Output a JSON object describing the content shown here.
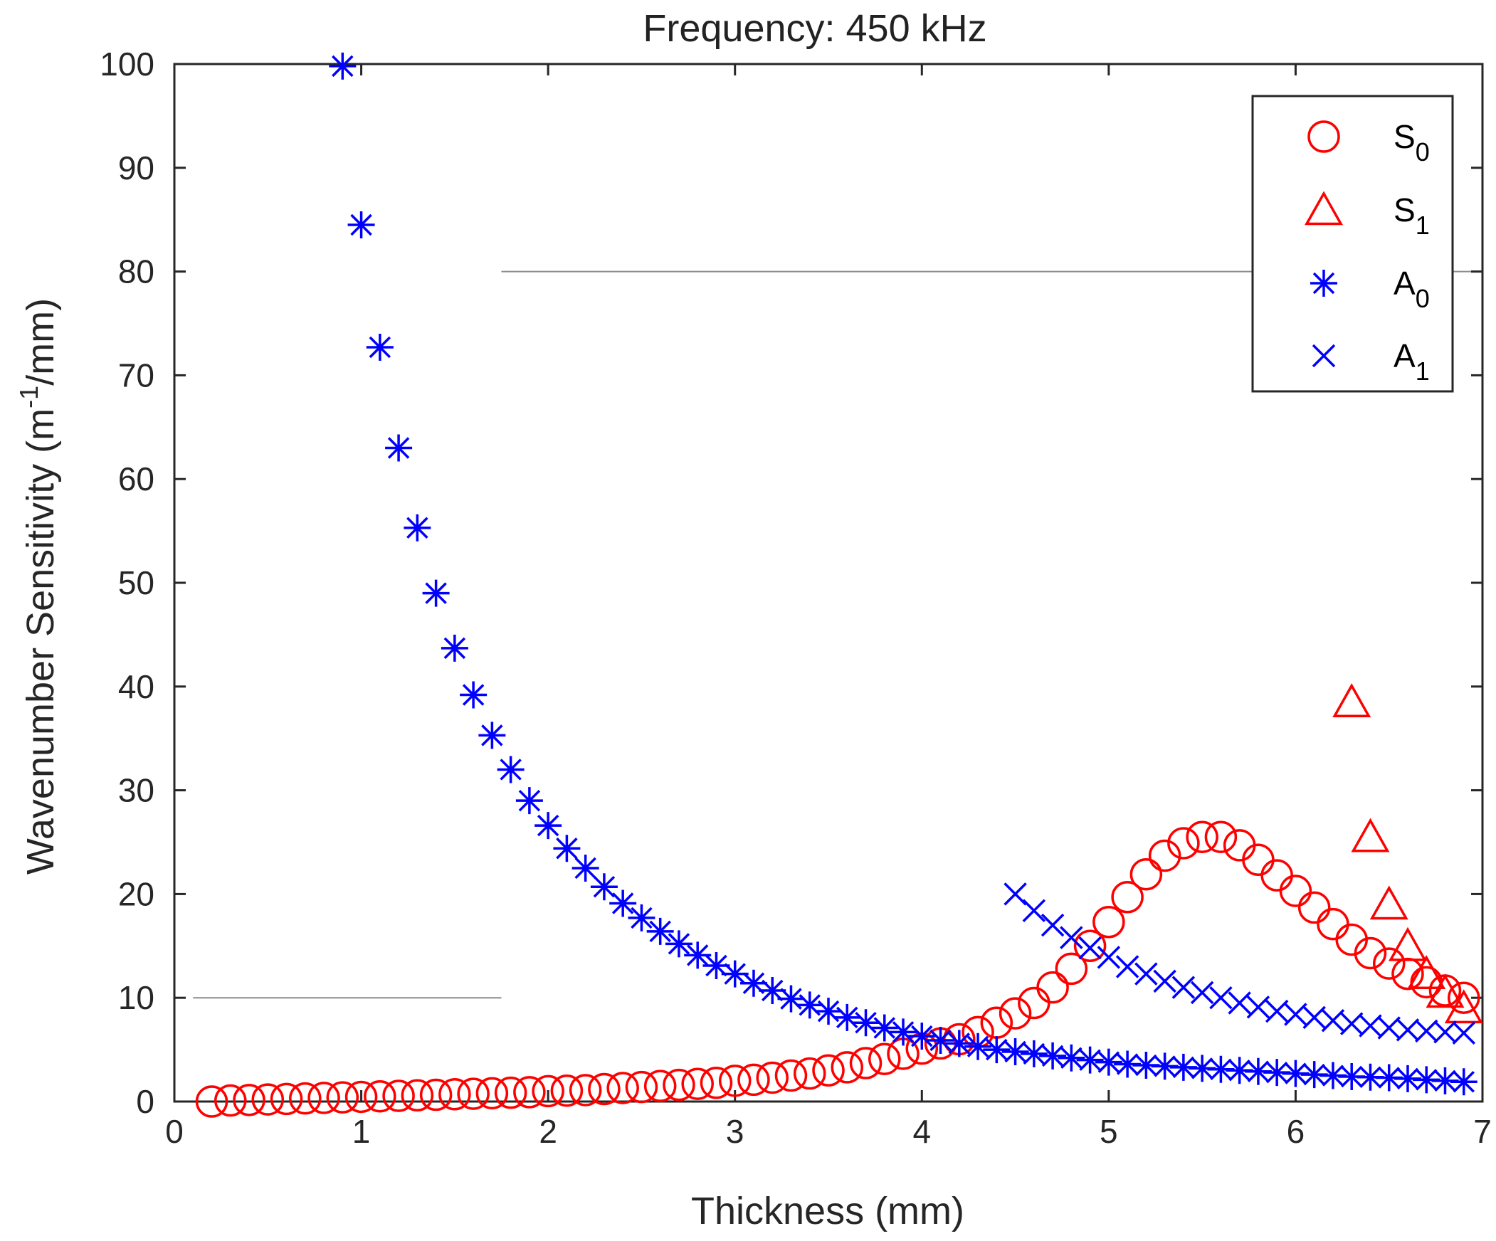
{
  "chart_data": {
    "type": "scatter",
    "title": "Frequency: 450 kHz",
    "xlabel": "Thickness (mm)",
    "ylabel": {
      "base": "Wavenumber Sensitivity (m",
      "sup": "-1",
      "tail": "/mm)"
    },
    "xlim": [
      0,
      7
    ],
    "ylim": [
      0,
      100
    ],
    "xticks": [
      0,
      1,
      2,
      3,
      4,
      5,
      6,
      7
    ],
    "yticks": [
      0,
      10,
      20,
      30,
      40,
      50,
      60,
      70,
      80,
      90,
      100
    ],
    "legend_position": "top-right",
    "colors": {
      "red": "#ff0000",
      "blue": "#0000ff",
      "axis": "#262626",
      "ref_line": "#8c8c8c"
    },
    "reference_lines": [
      {
        "y": 80,
        "x_range": [
          1.75,
          7
        ]
      },
      {
        "y": 10,
        "x_range": [
          0.1,
          1.75
        ]
      }
    ],
    "series": [
      {
        "name": "S",
        "sub": "0",
        "marker": "circle",
        "color": "#ff0000",
        "x": [
          0.2,
          0.3,
          0.4,
          0.5,
          0.6,
          0.7,
          0.8,
          0.9,
          1.0,
          1.1,
          1.2,
          1.3,
          1.4,
          1.5,
          1.6,
          1.7,
          1.8,
          1.9,
          2.0,
          2.1,
          2.2,
          2.3,
          2.4,
          2.5,
          2.6,
          2.7,
          2.8,
          2.9,
          3.0,
          3.1,
          3.2,
          3.3,
          3.4,
          3.5,
          3.6,
          3.7,
          3.8,
          3.9,
          4.0,
          4.1,
          4.2,
          4.3,
          4.4,
          4.5,
          4.6,
          4.7,
          4.8,
          4.9,
          5.0,
          5.1,
          5.2,
          5.3,
          5.4,
          5.5,
          5.6,
          5.7,
          5.8,
          5.9,
          6.0,
          6.1,
          6.2,
          6.3,
          6.4,
          6.5,
          6.6,
          6.7,
          6.8,
          6.9
        ],
        "y": [
          0.0,
          0.1,
          0.15,
          0.2,
          0.25,
          0.3,
          0.35,
          0.4,
          0.45,
          0.5,
          0.55,
          0.6,
          0.65,
          0.7,
          0.75,
          0.8,
          0.85,
          0.9,
          1.0,
          1.05,
          1.1,
          1.2,
          1.3,
          1.4,
          1.5,
          1.6,
          1.7,
          1.8,
          2.0,
          2.1,
          2.3,
          2.5,
          2.7,
          3.0,
          3.3,
          3.7,
          4.1,
          4.6,
          5.1,
          5.6,
          6.0,
          6.7,
          7.6,
          8.5,
          9.5,
          11.0,
          12.8,
          15.0,
          17.3,
          19.7,
          21.9,
          23.7,
          24.9,
          25.5,
          25.5,
          24.7,
          23.3,
          21.8,
          20.3,
          18.7,
          17.1,
          15.6,
          14.3,
          13.3,
          12.3,
          11.5,
          10.7,
          10.0
        ]
      },
      {
        "name": "S",
        "sub": "1",
        "marker": "triangle",
        "color": "#ff0000",
        "x": [
          6.3,
          6.4,
          6.5,
          6.6,
          6.7,
          6.8,
          6.9
        ],
        "y": [
          38.5,
          25.5,
          19.0,
          15.0,
          12.3,
          10.5,
          9.0
        ]
      },
      {
        "name": "A",
        "sub": "0",
        "marker": "asterisk",
        "color": "#0000ff",
        "x": [
          0.9,
          1.0,
          1.1,
          1.2,
          1.3,
          1.4,
          1.5,
          1.6,
          1.7,
          1.8,
          1.9,
          2.0,
          2.1,
          2.2,
          2.3,
          2.4,
          2.5,
          2.6,
          2.7,
          2.8,
          2.9,
          3.0,
          3.1,
          3.2,
          3.3,
          3.4,
          3.5,
          3.6,
          3.7,
          3.8,
          3.9,
          4.0,
          4.1,
          4.2,
          4.3,
          4.4,
          4.5,
          4.6,
          4.7,
          4.8,
          4.9,
          5.0,
          5.1,
          5.2,
          5.3,
          5.4,
          5.5,
          5.6,
          5.7,
          5.8,
          5.9,
          6.0,
          6.1,
          6.2,
          6.3,
          6.4,
          6.5,
          6.6,
          6.7,
          6.8,
          6.9
        ],
        "y": [
          99.8,
          84.5,
          72.7,
          63.0,
          55.3,
          49.0,
          43.7,
          39.2,
          35.3,
          32.0,
          29.0,
          26.6,
          24.4,
          22.5,
          20.7,
          19.1,
          17.7,
          16.4,
          15.2,
          14.1,
          13.1,
          12.3,
          11.4,
          10.7,
          9.9,
          9.3,
          8.7,
          8.1,
          7.6,
          7.1,
          6.7,
          6.3,
          5.9,
          5.6,
          5.3,
          5.0,
          4.8,
          4.6,
          4.4,
          4.2,
          4.0,
          3.8,
          3.6,
          3.5,
          3.4,
          3.3,
          3.2,
          3.1,
          3.0,
          2.9,
          2.8,
          2.7,
          2.6,
          2.5,
          2.4,
          2.35,
          2.3,
          2.2,
          2.1,
          2.0,
          1.9
        ]
      },
      {
        "name": "A",
        "sub": "1",
        "marker": "cross",
        "color": "#0000ff",
        "x": [
          4.5,
          4.6,
          4.7,
          4.8,
          4.9,
          5.0,
          5.1,
          5.2,
          5.3,
          5.4,
          5.5,
          5.6,
          5.7,
          5.8,
          5.9,
          6.0,
          6.1,
          6.2,
          6.3,
          6.4,
          6.5,
          6.6,
          6.7,
          6.8,
          6.9
        ],
        "y": [
          20.0,
          18.4,
          17.0,
          15.8,
          14.8,
          13.9,
          13.0,
          12.3,
          11.6,
          11.0,
          10.5,
          10.0,
          9.5,
          9.1,
          8.7,
          8.4,
          8.1,
          7.8,
          7.5,
          7.3,
          7.1,
          6.9,
          6.8,
          6.7,
          6.6
        ]
      }
    ]
  }
}
